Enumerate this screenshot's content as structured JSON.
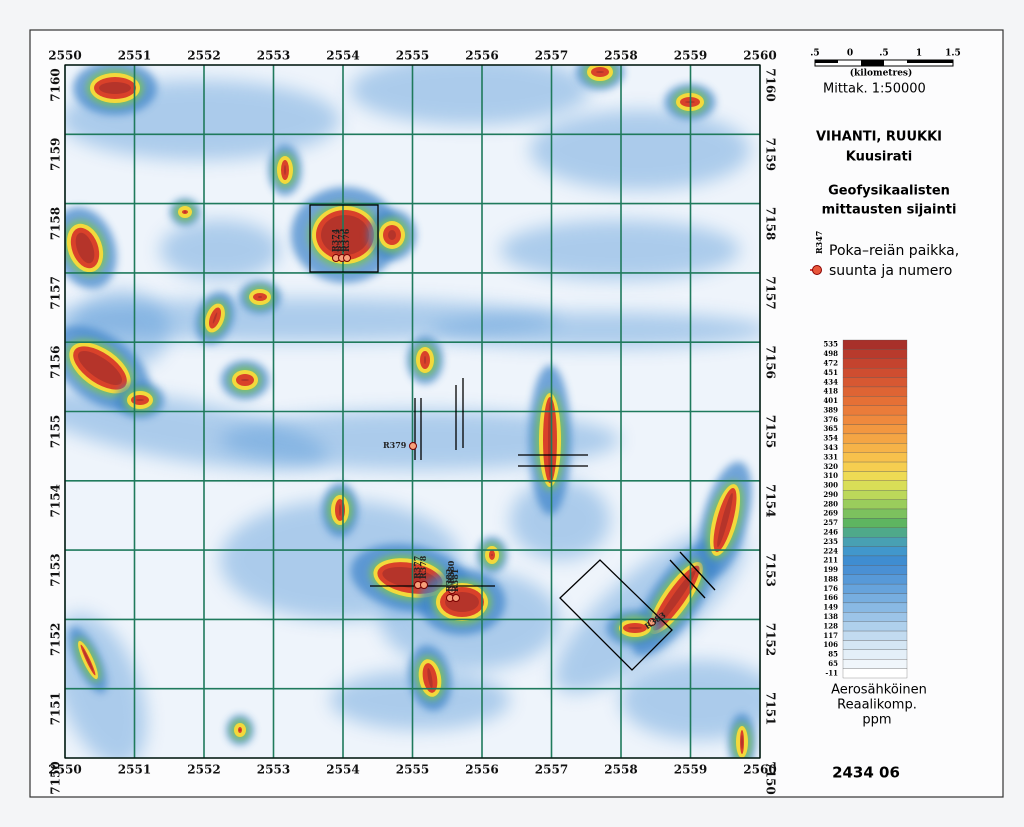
{
  "map": {
    "x_labels": [
      2550,
      2551,
      2552,
      2553,
      2554,
      2555,
      2556,
      2557,
      2558,
      2559,
      2560
    ],
    "y_labels": [
      7160,
      7159,
      7158,
      7157,
      7156,
      7155,
      7154,
      7153,
      7152,
      7151,
      7150
    ],
    "scale": {
      "ticks": [
        ".5",
        "0",
        ".5",
        "1",
        "1.5"
      ],
      "unit": "(kilometres)",
      "ratio": "Mittak. 1:50000"
    },
    "title": [
      "VIHANTI, RUUKKI",
      "Kuusirati"
    ],
    "subtitle": [
      "Geofysikaalisten",
      "mittausten sijainti"
    ],
    "legend": {
      "sample": "R347",
      "text": [
        "Poka–reiän paikka,",
        "suunta ja numero"
      ]
    },
    "color_scale": {
      "levels": [
        535,
        498,
        472,
        451,
        434,
        418,
        401,
        389,
        376,
        365,
        354,
        343,
        331,
        320,
        310,
        300,
        290,
        280,
        269,
        257,
        246,
        235,
        224,
        211,
        199,
        188,
        176,
        166,
        149,
        138,
        128,
        117,
        106,
        85,
        65,
        -11
      ]
    },
    "caption": [
      "Aerosähköinen",
      "Reaalikomp.",
      "ppm"
    ],
    "sheet": "2434 06",
    "drill_holes": [
      "R374",
      "R375",
      "R376",
      "R379",
      "R377",
      "R378",
      "R380",
      "R382",
      "R381",
      "R383"
    ]
  }
}
